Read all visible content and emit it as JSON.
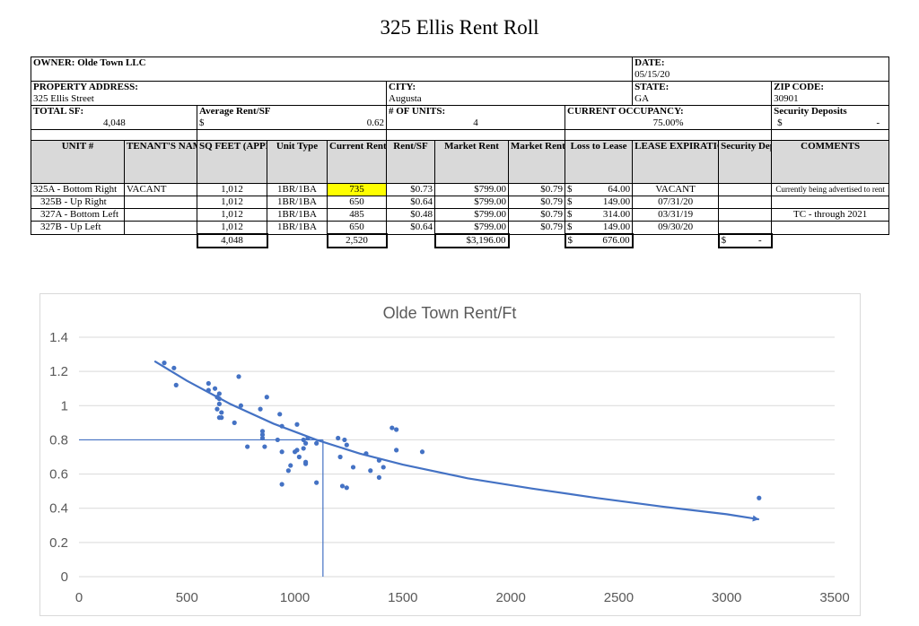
{
  "title": "325 Ellis Rent Roll",
  "owner": {
    "label": "OWNER:",
    "value": "Olde Town LLC"
  },
  "date": {
    "label": "DATE:",
    "value": "05/15/20"
  },
  "property_address": {
    "label": "PROPERTY ADDRESS:",
    "value": "325 Ellis Street"
  },
  "city": {
    "label": "CITY:",
    "value": "Augusta"
  },
  "state": {
    "label": "STATE:",
    "value": "GA"
  },
  "zip": {
    "label": "ZIP CODE:",
    "value": "30901"
  },
  "total_sf": {
    "label": "TOTAL SF:",
    "value": "4,048"
  },
  "avg_rent_sf": {
    "label": "Average Rent/SF",
    "currency": "$",
    "value": "0.62"
  },
  "num_units": {
    "label": "# OF UNITS:",
    "value": "4"
  },
  "occupancy": {
    "label": "CURRENT OCCUPANCY:",
    "value": "75.00%"
  },
  "security_deposits": {
    "label": "Security Deposits",
    "currency": "$",
    "value": "-"
  },
  "columns": [
    "UNIT #",
    "TENANT'S NAME",
    "SQ FEET (APPROX.)",
    "Unit Type",
    "Current Rent",
    "Rent/SF",
    "Market Rent",
    "Market Rent/SF",
    "Loss to Lease",
    "LEASE EXPIRATION OR MTM",
    "Security Deposit",
    "COMMENTS"
  ],
  "rows": [
    {
      "unit": "325A - Bottom Right",
      "tenant": "VACANT",
      "sqft": "1,012",
      "type": "1BR/1BA",
      "rent": "735",
      "rent_sf": "$0.73",
      "market": "$799.00",
      "market_sf": "$0.79",
      "loss_cur": "$",
      "loss": "64.00",
      "exp": "VACANT",
      "deposit": "",
      "comments": "Currently being advertised to rent"
    },
    {
      "unit": "325B - Up Right",
      "tenant": "",
      "sqft": "1,012",
      "type": "1BR/1BA",
      "rent": "650",
      "rent_sf": "$0.64",
      "market": "$799.00",
      "market_sf": "$0.79",
      "loss_cur": "$",
      "loss": "149.00",
      "exp": "07/31/20",
      "deposit": "",
      "comments": ""
    },
    {
      "unit": "327A - Bottom Left",
      "tenant": "",
      "sqft": "1,012",
      "type": "1BR/1BA",
      "rent": "485",
      "rent_sf": "$0.48",
      "market": "$799.00",
      "market_sf": "$0.79",
      "loss_cur": "$",
      "loss": "314.00",
      "exp": "03/31/19",
      "deposit": "",
      "comments": "TC - through 2021"
    },
    {
      "unit": "327B - Up Left",
      "tenant": "",
      "sqft": "1,012",
      "type": "1BR/1BA",
      "rent": "650",
      "rent_sf": "$0.64",
      "market": "$799.00",
      "market_sf": "$0.79",
      "loss_cur": "$",
      "loss": "149.00",
      "exp": "09/30/20",
      "deposit": "",
      "comments": ""
    }
  ],
  "totals": {
    "sqft": "4,048",
    "rent": "2,520",
    "market": "$3,196.00",
    "loss_cur": "$",
    "loss": "676.00",
    "deposit_cur": "$",
    "deposit": "-"
  },
  "chart_data": {
    "type": "scatter",
    "title": "Olde Town  Rent/Ft",
    "xlabel": "",
    "ylabel": "",
    "xlim": [
      0,
      3500
    ],
    "ylim": [
      0,
      1.4
    ],
    "x_ticks": [
      0,
      500,
      1000,
      1500,
      2000,
      2500,
      3000,
      3500
    ],
    "y_ticks": [
      0,
      0.2,
      0.4,
      0.6,
      0.8,
      1,
      1.2,
      1.4
    ],
    "grid": "horizontal",
    "color": "#4472c4",
    "points": [
      [
        395,
        1.25
      ],
      [
        440,
        1.22
      ],
      [
        450,
        1.12
      ],
      [
        600,
        1.13
      ],
      [
        600,
        1.09
      ],
      [
        630,
        1.1
      ],
      [
        640,
        1.05
      ],
      [
        640,
        0.98
      ],
      [
        650,
        1.01
      ],
      [
        660,
        0.96
      ],
      [
        650,
        0.93
      ],
      [
        660,
        0.93
      ],
      [
        650,
        1.07
      ],
      [
        650,
        1.04
      ],
      [
        740,
        1.17
      ],
      [
        720,
        0.9
      ],
      [
        750,
        1.0
      ],
      [
        780,
        0.76
      ],
      [
        840,
        0.98
      ],
      [
        850,
        0.85
      ],
      [
        850,
        0.83
      ],
      [
        850,
        0.81
      ],
      [
        870,
        1.05
      ],
      [
        860,
        0.76
      ],
      [
        920,
        0.8
      ],
      [
        930,
        0.95
      ],
      [
        940,
        0.88
      ],
      [
        940,
        0.73
      ],
      [
        940,
        0.54
      ],
      [
        970,
        0.62
      ],
      [
        980,
        0.65
      ],
      [
        1000,
        0.73
      ],
      [
        1010,
        0.89
      ],
      [
        1010,
        0.74
      ],
      [
        1020,
        0.7
      ],
      [
        1040,
        0.75
      ],
      [
        1040,
        0.8
      ],
      [
        1050,
        0.78
      ],
      [
        1060,
        0.81
      ],
      [
        1050,
        0.67
      ],
      [
        1050,
        0.66
      ],
      [
        1100,
        0.78
      ],
      [
        1100,
        0.55
      ],
      [
        1200,
        0.81
      ],
      [
        1210,
        0.7
      ],
      [
        1230,
        0.8
      ],
      [
        1240,
        0.77
      ],
      [
        1220,
        0.53
      ],
      [
        1240,
        0.52
      ],
      [
        1270,
        0.64
      ],
      [
        1330,
        0.72
      ],
      [
        1350,
        0.62
      ],
      [
        1390,
        0.58
      ],
      [
        1390,
        0.68
      ],
      [
        1410,
        0.64
      ],
      [
        1450,
        0.87
      ],
      [
        1470,
        0.86
      ],
      [
        1470,
        0.74
      ],
      [
        1590,
        0.73
      ],
      [
        3150,
        0.46
      ]
    ],
    "trendline": [
      [
        350,
        1.26
      ],
      [
        500,
        1.145
      ],
      [
        700,
        1.01
      ],
      [
        900,
        0.895
      ],
      [
        1100,
        0.8
      ],
      [
        1300,
        0.72
      ],
      [
        1500,
        0.655
      ],
      [
        1800,
        0.575
      ],
      [
        2100,
        0.515
      ],
      [
        2400,
        0.46
      ],
      [
        2700,
        0.41
      ],
      [
        3000,
        0.365
      ],
      [
        3150,
        0.335
      ]
    ],
    "reference_h": {
      "x0": 0,
      "x1": 1130,
      "y": 0.8
    },
    "reference_v": {
      "x": 1130,
      "y0": 0,
      "y1": 0.8
    }
  }
}
